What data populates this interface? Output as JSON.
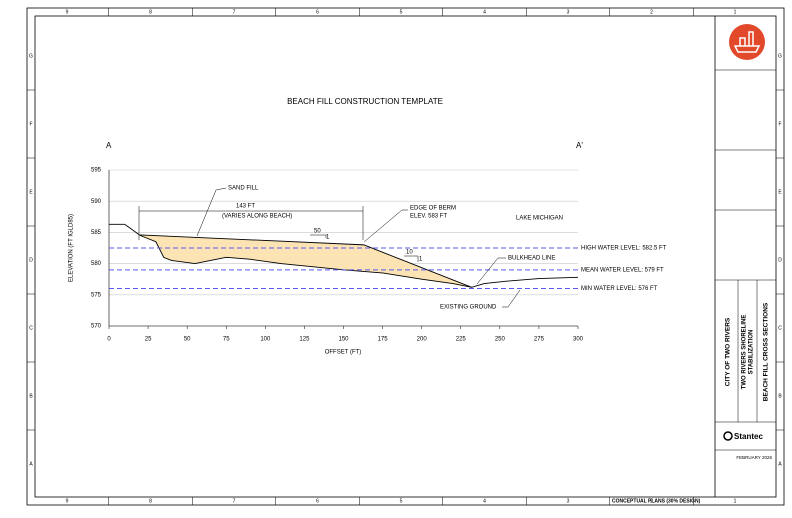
{
  "chart_data": {
    "type": "line",
    "title": "BEACH FILL CONSTRUCTION TEMPLATE",
    "section_start": "A",
    "section_end": "A'",
    "x_label": "OFFSET (FT)",
    "y_label": "ELEVATION (FT IGLD85)",
    "xlim": [
      0,
      300
    ],
    "xticks": [
      0,
      25,
      50,
      75,
      100,
      125,
      150,
      175,
      200,
      225,
      250,
      275,
      300
    ],
    "ylim": [
      570,
      595
    ],
    "yticks": [
      570,
      575,
      580,
      585,
      590,
      595
    ],
    "grid": true,
    "series": [
      {
        "color": "#000000",
        "fill": "#fbe3b4",
        "x": [
          20,
          163,
          232
        ],
        "values": [
          584.6,
          583,
          576.2
        ]
      },
      {
        "color": "#000000",
        "x": [
          0,
          10,
          20,
          30,
          35,
          40,
          55,
          65,
          75,
          90,
          110,
          130,
          150,
          175,
          200,
          220,
          232,
          240,
          255,
          275,
          300
        ],
        "values": [
          586.3,
          586.3,
          584.5,
          583.5,
          581,
          580.5,
          580,
          580.5,
          581,
          580.7,
          580,
          579.5,
          579,
          578.5,
          577.5,
          576.8,
          576.2,
          576.8,
          577.2,
          577.6,
          577.8
        ]
      }
    ],
    "reference_lines": [
      {
        "label": "HIGH WATER LEVEL: 582.5 FT",
        "value": 582.5,
        "color": "#5a5af0"
      },
      {
        "label": "MEAN WATER LEVEL: 579 FT",
        "value": 579,
        "color": "#5a5af0"
      },
      {
        "label": "MIN WATER LEVEL: 576 FT",
        "value": 576,
        "color": "#5a5af0"
      }
    ],
    "annotations": [
      "SAND FILL",
      "143 FT",
      "(VARIES ALONG BEACH)",
      "EDGE OF  BERM",
      "ELEV. 583 FT",
      "LAKE MICHIGAN",
      "50",
      "1",
      "10",
      "1",
      "BULKHEAD LINE",
      "EXISTING GROUND"
    ]
  },
  "sheet": {
    "columns": [
      "9",
      "8",
      "7",
      "6",
      "5",
      "4",
      "3",
      "2",
      "1"
    ],
    "rows": [
      "G",
      "F",
      "E",
      "D",
      "C",
      "B",
      "A"
    ],
    "client": "CITY OF TWO RIVERS",
    "project": [
      "TWO RIVERS SHORELINE",
      "STABILIZATION"
    ],
    "sheet_title": "BEACH FILL CROSS SECTIONS",
    "firm": "Stantec",
    "date": "FEBRUARY 2026",
    "status": "CONCEPTUAL PLANS (30% DESIGN)"
  }
}
